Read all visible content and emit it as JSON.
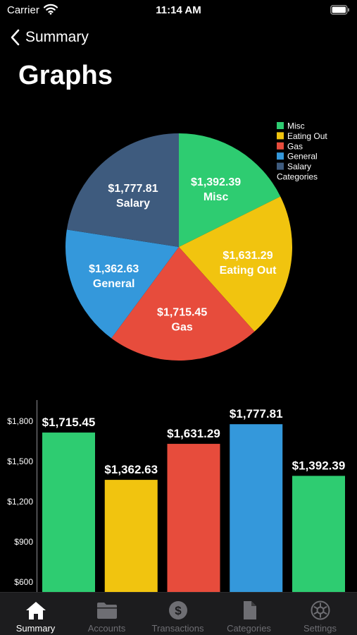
{
  "status_bar": {
    "carrier": "Carrier",
    "time": "11:14 AM"
  },
  "nav": {
    "back_label": "Summary"
  },
  "page": {
    "title": "Graphs"
  },
  "chart_data": [
    {
      "type": "pie",
      "legend_title": "Categories",
      "legend_position": "top-right",
      "slices": [
        {
          "label": "Misc",
          "value": 1392.39,
          "value_label": "$1,392.39",
          "color": "#2ecc71"
        },
        {
          "label": "Eating Out",
          "value": 1631.29,
          "value_label": "$1,631.29",
          "color": "#f1c40f"
        },
        {
          "label": "Gas",
          "value": 1715.45,
          "value_label": "$1,715.45",
          "color": "#e74c3c"
        },
        {
          "label": "General",
          "value": 1362.63,
          "value_label": "$1,362.63",
          "color": "#3498db"
        },
        {
          "label": "Salary",
          "value": 1777.81,
          "value_label": "$1,777.81",
          "color": "#3e5b7e"
        }
      ]
    },
    {
      "type": "bar",
      "values": [
        1715.45,
        1362.63,
        1631.29,
        1777.81,
        1392.39
      ],
      "value_labels": [
        "$1,715.45",
        "$1,362.63",
        "$1,631.29",
        "$1,777.81",
        "$1,392.39"
      ],
      "colors": [
        "#2ecc71",
        "#f1c40f",
        "#e74c3c",
        "#3498db",
        "#2ecc71"
      ],
      "yticks": [
        600,
        900,
        1200,
        1500,
        1800
      ],
      "ytick_labels": [
        "$600",
        "$900",
        "$1,200",
        "$1,500",
        "$1,800"
      ],
      "ylim": [
        500,
        1950
      ],
      "grid": false
    }
  ],
  "tab_bar": {
    "items": [
      {
        "label": "Summary",
        "icon": "house-icon",
        "active": true
      },
      {
        "label": "Accounts",
        "icon": "folder-icon",
        "active": false
      },
      {
        "label": "Transactions",
        "icon": "dollar-icon",
        "active": false
      },
      {
        "label": "Categories",
        "icon": "document-icon",
        "active": false
      },
      {
        "label": "Settings",
        "icon": "gear-icon",
        "active": false
      }
    ]
  }
}
